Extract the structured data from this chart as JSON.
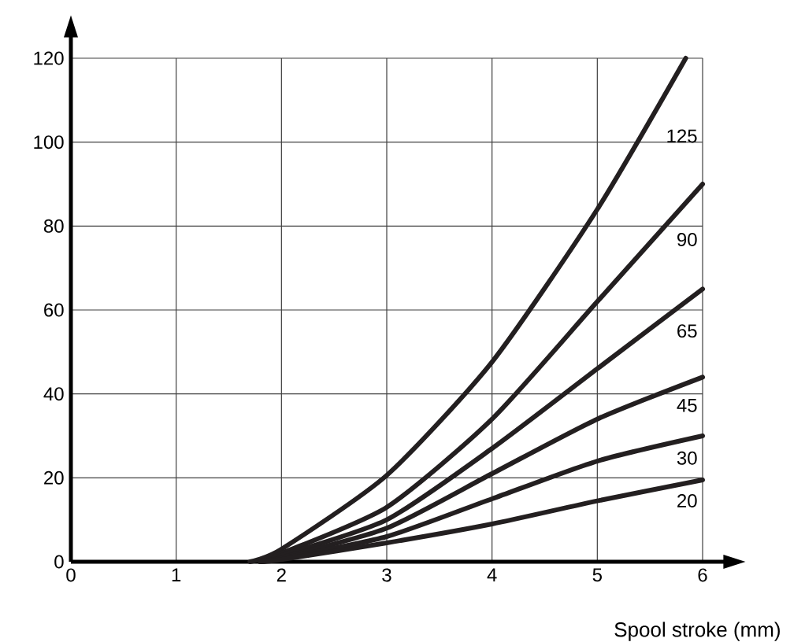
{
  "chart_data": {
    "type": "line",
    "xlabel": "Spool stroke (mm)",
    "xlim": [
      0,
      6
    ],
    "ylim": [
      0,
      120
    ],
    "xticks": [
      0,
      1,
      2,
      3,
      4,
      5,
      6
    ],
    "yticks": [
      0,
      20,
      40,
      60,
      80,
      100,
      120
    ],
    "grid": true,
    "marker": "none",
    "line_style": "solid",
    "series": [
      {
        "name": "125",
        "color": "#231f20",
        "x": [
          1.7,
          2,
          3,
          4,
          5,
          5.84
        ],
        "values": [
          0,
          3,
          20.6,
          47.6,
          84,
          120
        ]
      },
      {
        "name": "90",
        "color": "#231f20",
        "x": [
          1.8,
          2,
          3,
          4,
          5,
          6
        ],
        "values": [
          0,
          2,
          13,
          34,
          62,
          90
        ]
      },
      {
        "name": "65",
        "color": "#231f20",
        "x": [
          1.8,
          2,
          3,
          4,
          5,
          6
        ],
        "values": [
          0,
          1.5,
          10,
          27,
          46,
          65
        ]
      },
      {
        "name": "45",
        "color": "#231f20",
        "x": [
          1.8,
          2,
          3,
          4,
          5,
          6
        ],
        "values": [
          0,
          1,
          8,
          21,
          34,
          44
        ]
      },
      {
        "name": "30",
        "color": "#231f20",
        "x": [
          1.8,
          2,
          3,
          4,
          5,
          6
        ],
        "values": [
          0,
          0.8,
          6,
          15,
          24,
          30
        ]
      },
      {
        "name": "20",
        "color": "#231f20",
        "x": [
          1.8,
          2,
          3,
          4,
          5,
          6
        ],
        "values": [
          0,
          0.5,
          4.5,
          9,
          14.5,
          19.5
        ]
      }
    ]
  }
}
